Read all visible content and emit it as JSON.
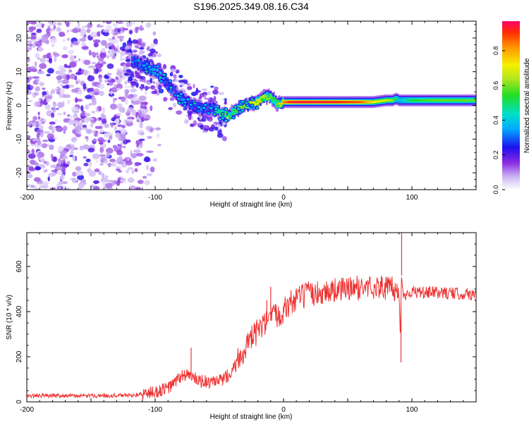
{
  "title": "S196.2025.349.08.16.C34",
  "chart_data": [
    {
      "type": "heatmap",
      "xlabel": "Height of straight line (km)",
      "ylabel": "Frequency (Hz)",
      "xlim": [
        -200,
        150
      ],
      "ylim": [
        -25,
        25
      ],
      "x_ticks": [
        "-200",
        "-100",
        "0",
        "100"
      ],
      "x_tick_values": [
        -200,
        -100,
        0,
        100
      ],
      "y_ticks": [
        "-20",
        "-10",
        "0",
        "10",
        "20"
      ],
      "y_tick_values": [
        -20,
        -10,
        0,
        10,
        20
      ],
      "colorbar": {
        "label": "Normalized spectral amplitude",
        "ticks": [
          "0.0",
          "0.2",
          "0.4",
          "0.6",
          "0.8"
        ],
        "tick_values": [
          0.0,
          0.2,
          0.4,
          0.6,
          0.8
        ],
        "range": [
          0,
          0.97
        ]
      },
      "ridge": {
        "x": [
          -115,
          -110,
          -105,
          -100,
          -95,
          -90,
          -85,
          -80,
          -75,
          -70,
          -65,
          -60,
          -55,
          -50,
          -47,
          -45,
          -42,
          -40,
          -35,
          -30,
          -25,
          -20,
          -15,
          -10,
          -7,
          -5,
          -2,
          0,
          5,
          10,
          20,
          40,
          60,
          70,
          80,
          85,
          88,
          90,
          100,
          120,
          150
        ],
        "freq": [
          13,
          12,
          11,
          10,
          9,
          6,
          4,
          2,
          1,
          0,
          -1,
          -1,
          -1,
          -2,
          -3,
          -3,
          -3,
          -2,
          -1,
          0,
          0.5,
          1,
          2.5,
          2.5,
          1.5,
          0.5,
          0.5,
          1,
          1,
          1,
          1,
          1,
          1,
          1,
          1.5,
          1.5,
          2,
          1.5,
          1.5,
          1.5,
          1.5
        ],
        "amplitude": [
          0.3,
          0.3,
          0.3,
          0.35,
          0.3,
          0.3,
          0.3,
          0.3,
          0.3,
          0.3,
          0.3,
          0.3,
          0.35,
          0.5,
          0.55,
          0.6,
          0.55,
          0.55,
          0.6,
          0.65,
          0.7,
          0.75,
          0.65,
          0.6,
          0.55,
          0.6,
          0.7,
          0.85,
          0.95,
          0.97,
          0.97,
          0.95,
          0.9,
          0.75,
          0.7,
          0.65,
          0.5,
          0.4,
          0.55,
          0.6,
          0.6
        ]
      }
    },
    {
      "type": "line",
      "xlabel": "Height of straight line (km)",
      "ylabel": "SNR (10 * v/v)",
      "xlim": [
        -200,
        150
      ],
      "ylim": [
        0,
        750
      ],
      "x_ticks": [
        "-200",
        "-100",
        "0",
        "100"
      ],
      "x_tick_values": [
        -200,
        -100,
        0,
        100
      ],
      "y_ticks": [
        "0",
        "200",
        "400",
        "600"
      ],
      "y_tick_values": [
        0,
        200,
        400,
        600
      ],
      "series": [
        {
          "name": "SNR",
          "color": "#ee3333",
          "x": [
            -200,
            -180,
            -160,
            -140,
            -120,
            -110,
            -100,
            -90,
            -85,
            -80,
            -75,
            -70,
            -65,
            -60,
            -55,
            -50,
            -45,
            -40,
            -35,
            -30,
            -25,
            -20,
            -15,
            -10,
            -5,
            0,
            5,
            10,
            15,
            20,
            30,
            40,
            50,
            60,
            70,
            80,
            85,
            88,
            90,
            91,
            92,
            93,
            94,
            96,
            100,
            110,
            120,
            130,
            140,
            150
          ],
          "y": [
            25,
            28,
            25,
            27,
            28,
            32,
            40,
            58,
            80,
            110,
            120,
            100,
            90,
            85,
            80,
            88,
            105,
            140,
            190,
            230,
            270,
            310,
            330,
            360,
            380,
            400,
            430,
            450,
            460,
            470,
            480,
            490,
            495,
            500,
            505,
            500,
            495,
            485,
            470,
            300,
            560,
            480,
            470,
            480,
            485,
            480,
            482,
            478,
            476,
            475
          ],
          "spikes": [
            {
              "x": -72,
              "y": 240
            },
            {
              "x": -10,
              "y": 510
            },
            {
              "x": -13,
              "y": 450
            },
            {
              "x": 92,
              "y": 750
            },
            {
              "x": 91.5,
              "y": 175
            }
          ]
        }
      ]
    }
  ]
}
